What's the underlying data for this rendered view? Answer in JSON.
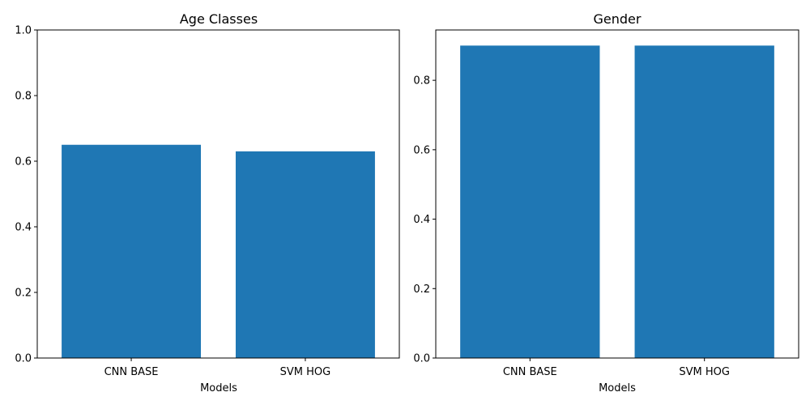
{
  "chart_data": [
    {
      "type": "bar",
      "title": "Age Classes",
      "xlabel": "Models",
      "ylabel": "",
      "categories": [
        "CNN BASE",
        "SVM HOG"
      ],
      "values": [
        0.65,
        0.63
      ],
      "ylim": [
        0,
        1.0
      ],
      "yticks": [
        "0.0",
        "0.2",
        "0.4",
        "0.6",
        "0.8",
        "1.0"
      ],
      "bar_color": "#1f77b4",
      "grid": false,
      "legend": "none"
    },
    {
      "type": "bar",
      "title": "Gender",
      "xlabel": "Models",
      "ylabel": "",
      "categories": [
        "CNN BASE",
        "SVM HOG"
      ],
      "values": [
        0.9,
        0.9
      ],
      "ylim": [
        0,
        0.945
      ],
      "yticks": [
        "0.0",
        "0.2",
        "0.4",
        "0.6",
        "0.8"
      ],
      "bar_color": "#1f77b4",
      "grid": false,
      "legend": "none"
    }
  ]
}
